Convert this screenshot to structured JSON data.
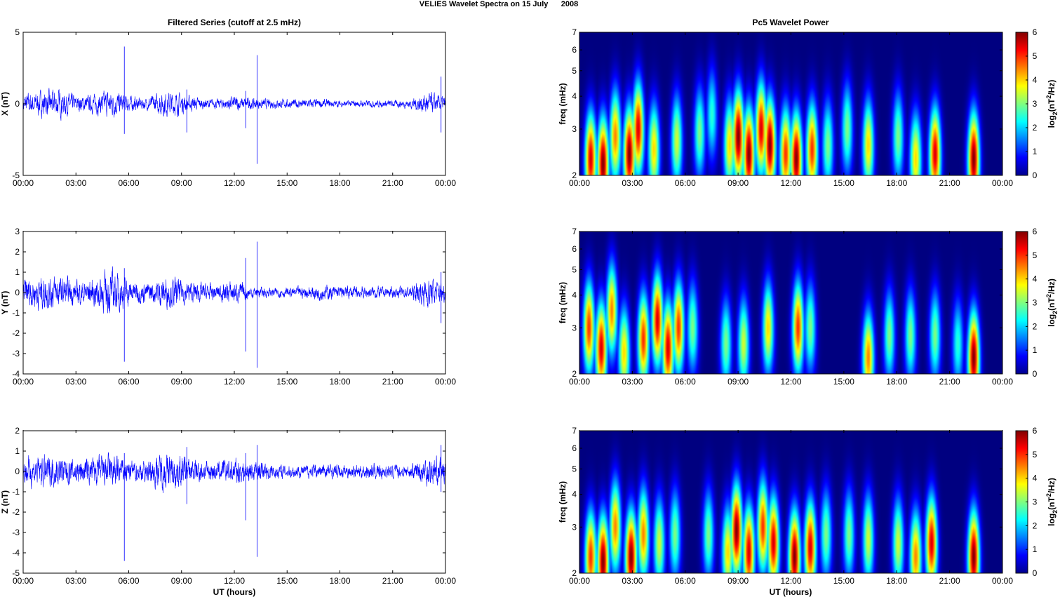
{
  "figure": {
    "suptitle": "VELIES Wavelet Spectra on 15 July      2008",
    "left_column_title": "Filtered Series (cutoff at 2.5 mHz)",
    "right_column_title": "Pc5 Wavelet Power",
    "xlabel": "UT (hours)"
  },
  "colors": {
    "trace": "#0000ff",
    "background_map": "#00008f",
    "colormap": "jet"
  },
  "chart_data": [
    {
      "type": "line",
      "panel": "X",
      "ylabel": "X (nT)",
      "xlim": [
        0,
        24
      ],
      "ylim": [
        -5,
        5
      ],
      "yticks": [
        -5,
        0,
        5
      ],
      "xticklabels": [
        "00:00",
        "03:00",
        "06:00",
        "09:00",
        "12:00",
        "15:00",
        "18:00",
        "21:00",
        "00:00"
      ],
      "noise_level": [
        0.45,
        0.55,
        0.6,
        0.35,
        0.4,
        0.6,
        0.35,
        0.25,
        0.55,
        0.45,
        0.25,
        0.2,
        0.35,
        0.25,
        0.2,
        0.2,
        0.2,
        0.2,
        0.15,
        0.15,
        0.15,
        0.15,
        0.2,
        0.5,
        0.3
      ],
      "spikes": [
        {
          "x": 5.75,
          "y": 4.0,
          "ymin": -2.1
        },
        {
          "x": 9.3,
          "y": 1.0,
          "ymin": -2.0
        },
        {
          "x": 12.65,
          "y": 0.9,
          "ymin": -1.7
        },
        {
          "x": 13.3,
          "y": 3.4,
          "ymin": -4.2
        },
        {
          "x": 23.75,
          "y": 1.9,
          "ymin": -2.0
        }
      ]
    },
    {
      "type": "line",
      "panel": "Y",
      "ylabel": "Y (nT)",
      "xlim": [
        0,
        24
      ],
      "ylim": [
        -4,
        3
      ],
      "yticks": [
        -4,
        -3,
        -2,
        -1,
        0,
        1,
        2,
        3
      ],
      "xticklabels": [
        "00:00",
        "03:00",
        "06:00",
        "09:00",
        "12:00",
        "15:00",
        "18:00",
        "21:00",
        "00:00"
      ],
      "noise_level": [
        0.45,
        0.55,
        0.5,
        0.35,
        0.45,
        0.7,
        0.4,
        0.3,
        0.5,
        0.4,
        0.3,
        0.25,
        0.35,
        0.2,
        0.15,
        0.15,
        0.2,
        0.25,
        0.2,
        0.2,
        0.2,
        0.15,
        0.2,
        0.5,
        0.3
      ],
      "spikes": [
        {
          "x": 5.75,
          "y": 1.2,
          "ymin": -3.4
        },
        {
          "x": 12.65,
          "y": 1.7,
          "ymin": -2.9
        },
        {
          "x": 13.3,
          "y": 2.5,
          "ymin": -3.7
        },
        {
          "x": 23.75,
          "y": 1.0,
          "ymin": -1.5
        }
      ]
    },
    {
      "type": "line",
      "panel": "Z",
      "ylabel": "Z (nT)",
      "xlim": [
        0,
        24
      ],
      "ylim": [
        -5,
        2
      ],
      "yticks": [
        -5,
        -4,
        -3,
        -2,
        -1,
        0,
        1,
        2
      ],
      "xticklabels": [
        "00:00",
        "03:00",
        "06:00",
        "09:00",
        "12:00",
        "15:00",
        "18:00",
        "21:00",
        "00:00"
      ],
      "noise_level": [
        0.45,
        0.5,
        0.45,
        0.4,
        0.45,
        0.55,
        0.35,
        0.35,
        0.6,
        0.5,
        0.35,
        0.3,
        0.45,
        0.35,
        0.25,
        0.2,
        0.2,
        0.25,
        0.2,
        0.2,
        0.25,
        0.2,
        0.2,
        0.55,
        0.35
      ],
      "spikes": [
        {
          "x": 5.75,
          "y": 0.9,
          "ymin": -4.4
        },
        {
          "x": 9.3,
          "y": 1.2,
          "ymin": -1.6
        },
        {
          "x": 12.65,
          "y": 0.9,
          "ymin": -2.4
        },
        {
          "x": 13.3,
          "y": 1.3,
          "ymin": -4.2
        },
        {
          "x": 23.75,
          "y": 1.3,
          "ymin": -1.0
        }
      ]
    },
    {
      "type": "heatmap",
      "panel": "X-wavelet",
      "ylabel": "freq (mHz)",
      "yscale": "log",
      "ylim": [
        2,
        7
      ],
      "yticks": [
        2,
        3,
        4,
        5,
        6,
        7
      ],
      "xlim": [
        0,
        24
      ],
      "xticklabels": [
        "00:00",
        "03:00",
        "06:00",
        "09:00",
        "12:00",
        "15:00",
        "18:00",
        "21:00",
        "00:00"
      ],
      "colorbar_label": "log2(nT^2/Hz)",
      "clim": [
        0,
        6
      ],
      "colorbar_ticks": [
        0,
        1,
        2,
        3,
        4,
        5,
        6
      ],
      "blobs": [
        {
          "t": 0.6,
          "f": 2.3,
          "p": 5.5
        },
        {
          "t": 1.3,
          "f": 2.2,
          "p": 6
        },
        {
          "t": 2.0,
          "f": 2.8,
          "p": 4.5
        },
        {
          "t": 2.8,
          "f": 2.4,
          "p": 6
        },
        {
          "t": 3.3,
          "f": 3.0,
          "p": 5.5
        },
        {
          "t": 4.2,
          "f": 2.5,
          "p": 4
        },
        {
          "t": 5.5,
          "f": 2.7,
          "p": 3.5
        },
        {
          "t": 6.8,
          "f": 2.9,
          "p": 3
        },
        {
          "t": 7.5,
          "f": 3.4,
          "p": 2.5
        },
        {
          "t": 8.5,
          "f": 2.6,
          "p": 4
        },
        {
          "t": 9.0,
          "f": 2.8,
          "p": 6
        },
        {
          "t": 9.6,
          "f": 2.4,
          "p": 6
        },
        {
          "t": 10.3,
          "f": 3.0,
          "p": 5.5
        },
        {
          "t": 10.8,
          "f": 2.6,
          "p": 6
        },
        {
          "t": 11.7,
          "f": 2.4,
          "p": 5
        },
        {
          "t": 12.3,
          "f": 2.3,
          "p": 6
        },
        {
          "t": 13.2,
          "f": 2.5,
          "p": 5
        },
        {
          "t": 14.1,
          "f": 2.6,
          "p": 3
        },
        {
          "t": 15.2,
          "f": 3.0,
          "p": 3
        },
        {
          "t": 16.4,
          "f": 2.6,
          "p": 4
        },
        {
          "t": 18.1,
          "f": 2.8,
          "p": 3
        },
        {
          "t": 19.1,
          "f": 2.3,
          "p": 4
        },
        {
          "t": 20.2,
          "f": 2.4,
          "p": 5.5
        },
        {
          "t": 22.4,
          "f": 2.3,
          "p": 6
        }
      ]
    },
    {
      "type": "heatmap",
      "panel": "Y-wavelet",
      "ylabel": "freq (mHz)",
      "yscale": "log",
      "ylim": [
        2,
        7
      ],
      "yticks": [
        2,
        3,
        4,
        5,
        6,
        7
      ],
      "xlim": [
        0,
        24
      ],
      "xticklabels": [
        "00:00",
        "03:00",
        "06:00",
        "09:00",
        "12:00",
        "15:00",
        "18:00",
        "21:00",
        "00:00"
      ],
      "colorbar_label": "log2(nT^2/Hz)",
      "clim": [
        0,
        6
      ],
      "colorbar_ticks": [
        0,
        1,
        2,
        3,
        4,
        5,
        6
      ],
      "blobs": [
        {
          "t": 0.5,
          "f": 3.0,
          "p": 5
        },
        {
          "t": 1.2,
          "f": 2.5,
          "p": 5.5
        },
        {
          "t": 1.8,
          "f": 3.5,
          "p": 4.5
        },
        {
          "t": 2.5,
          "f": 2.4,
          "p": 4
        },
        {
          "t": 3.6,
          "f": 2.7,
          "p": 5
        },
        {
          "t": 4.4,
          "f": 3.2,
          "p": 5.5
        },
        {
          "t": 5.0,
          "f": 2.5,
          "p": 5.5
        },
        {
          "t": 5.6,
          "f": 3.0,
          "p": 5
        },
        {
          "t": 6.4,
          "f": 3.0,
          "p": 3
        },
        {
          "t": 8.3,
          "f": 2.6,
          "p": 3
        },
        {
          "t": 9.3,
          "f": 2.6,
          "p": 3.5
        },
        {
          "t": 10.7,
          "f": 3.0,
          "p": 4
        },
        {
          "t": 12.4,
          "f": 3.0,
          "p": 5
        },
        {
          "t": 13.1,
          "f": 3.0,
          "p": 3
        },
        {
          "t": 16.4,
          "f": 2.3,
          "p": 4.5
        },
        {
          "t": 17.6,
          "f": 2.8,
          "p": 3
        },
        {
          "t": 18.8,
          "f": 2.8,
          "p": 3
        },
        {
          "t": 20.2,
          "f": 2.8,
          "p": 3
        },
        {
          "t": 21.5,
          "f": 2.6,
          "p": 2.5
        },
        {
          "t": 22.4,
          "f": 2.3,
          "p": 6
        }
      ]
    },
    {
      "type": "heatmap",
      "panel": "Z-wavelet",
      "ylabel": "freq (mHz)",
      "yscale": "log",
      "ylim": [
        2,
        7
      ],
      "yticks": [
        2,
        3,
        4,
        5,
        6,
        7
      ],
      "xlim": [
        0,
        24
      ],
      "xticklabels": [
        "00:00",
        "03:00",
        "06:00",
        "09:00",
        "12:00",
        "15:00",
        "18:00",
        "21:00",
        "00:00"
      ],
      "colorbar_label": "log2(nT^2/Hz)",
      "clim": [
        0,
        6
      ],
      "colorbar_ticks": [
        0,
        1,
        2,
        3,
        4,
        5,
        6
      ],
      "blobs": [
        {
          "t": 0.6,
          "f": 2.3,
          "p": 5
        },
        {
          "t": 1.3,
          "f": 2.2,
          "p": 6
        },
        {
          "t": 2.0,
          "f": 3.0,
          "p": 4.5
        },
        {
          "t": 2.9,
          "f": 2.3,
          "p": 6
        },
        {
          "t": 3.6,
          "f": 2.8,
          "p": 4.5
        },
        {
          "t": 4.5,
          "f": 2.6,
          "p": 3.5
        },
        {
          "t": 5.4,
          "f": 2.8,
          "p": 3
        },
        {
          "t": 7.3,
          "f": 2.8,
          "p": 3
        },
        {
          "t": 8.4,
          "f": 2.4,
          "p": 4
        },
        {
          "t": 8.9,
          "f": 2.9,
          "p": 6
        },
        {
          "t": 9.6,
          "f": 2.4,
          "p": 5.5
        },
        {
          "t": 10.4,
          "f": 3.0,
          "p": 5
        },
        {
          "t": 11.0,
          "f": 2.6,
          "p": 5.5
        },
        {
          "t": 12.2,
          "f": 2.3,
          "p": 6
        },
        {
          "t": 13.1,
          "f": 2.5,
          "p": 5.5
        },
        {
          "t": 14.0,
          "f": 2.8,
          "p": 3
        },
        {
          "t": 15.3,
          "f": 2.8,
          "p": 3
        },
        {
          "t": 16.4,
          "f": 2.7,
          "p": 3.5
        },
        {
          "t": 18.1,
          "f": 2.6,
          "p": 3.5
        },
        {
          "t": 19.1,
          "f": 2.3,
          "p": 4.5
        },
        {
          "t": 20.0,
          "f": 2.6,
          "p": 5.5
        },
        {
          "t": 22.4,
          "f": 2.3,
          "p": 6
        }
      ]
    }
  ]
}
